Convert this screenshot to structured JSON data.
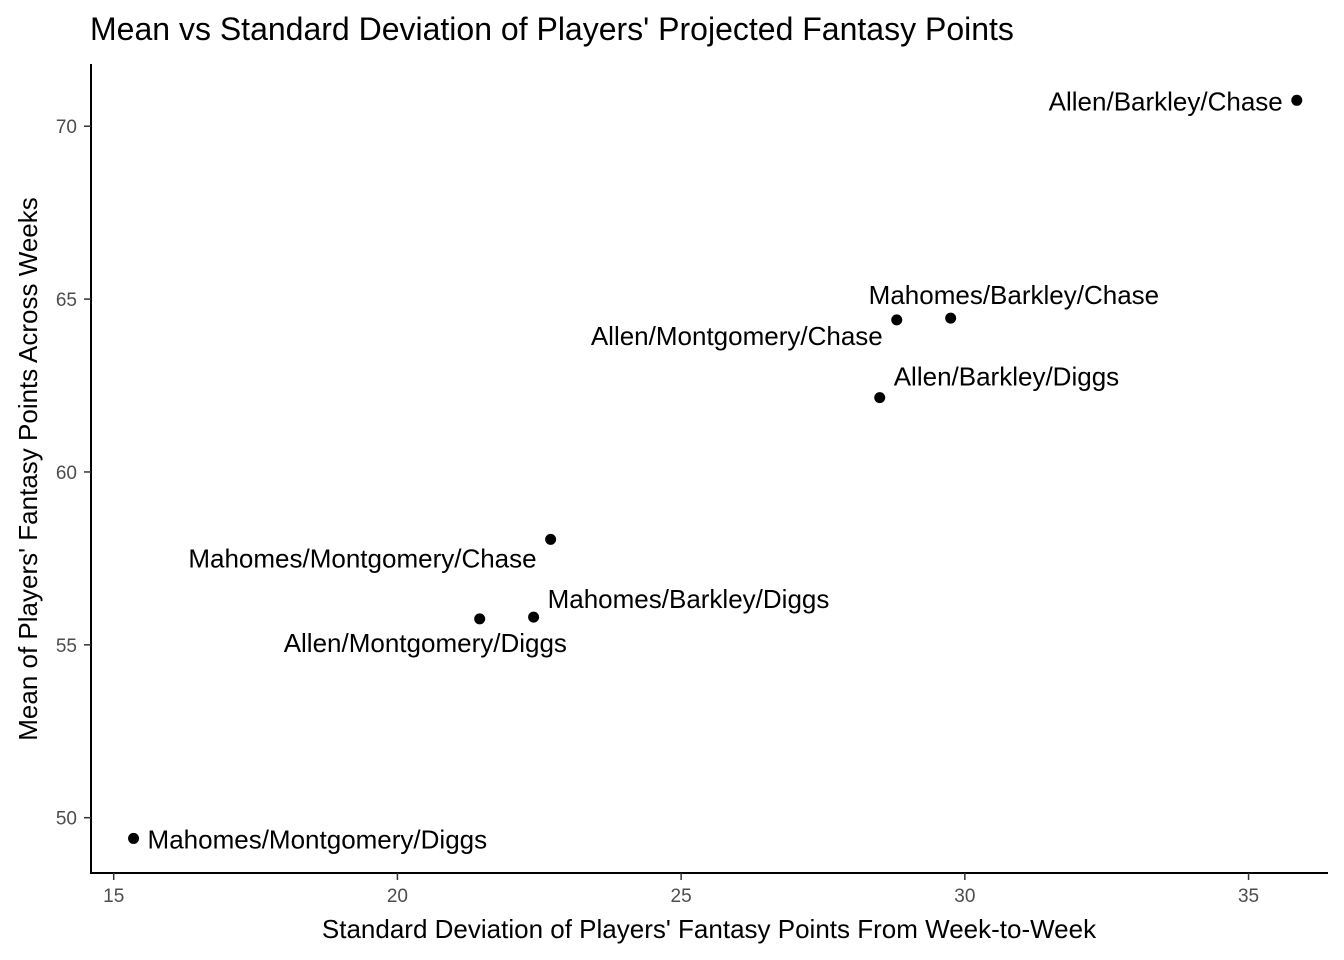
{
  "chart_data": {
    "type": "scatter",
    "title": "Mean vs Standard Deviation of Players' Projected Fantasy Points",
    "xlabel": "Standard Deviation of Players' Fantasy Points From Week-to-Week",
    "ylabel": "Mean of Players' Fantasy Points Across Weeks",
    "xlim": [
      14.6,
      36.4
    ],
    "ylim": [
      48.4,
      71.8
    ],
    "x_ticks": [
      15,
      20,
      25,
      30,
      35
    ],
    "y_ticks": [
      50,
      55,
      60,
      65,
      70
    ],
    "grid": false,
    "points": [
      {
        "label": "Allen/Barkley/Chase",
        "x": 35.85,
        "y": 70.75
      },
      {
        "label": "Mahomes/Barkley/Chase",
        "x": 29.75,
        "y": 64.45
      },
      {
        "label": "Allen/Montgomery/Chase",
        "x": 28.8,
        "y": 64.4
      },
      {
        "label": "Allen/Barkley/Diggs",
        "x": 28.5,
        "y": 62.15
      },
      {
        "label": "Mahomes/Montgomery/Chase",
        "x": 22.7,
        "y": 58.05
      },
      {
        "label": "Mahomes/Barkley/Diggs",
        "x": 22.4,
        "y": 55.8
      },
      {
        "label": "Allen/Montgomery/Diggs",
        "x": 21.45,
        "y": 55.75
      },
      {
        "label": "Mahomes/Montgomery/Diggs",
        "x": 15.35,
        "y": 49.4
      }
    ],
    "colors": {
      "point": "#000000",
      "axis": "#000000",
      "tick_label": "#4d4d4d"
    }
  }
}
